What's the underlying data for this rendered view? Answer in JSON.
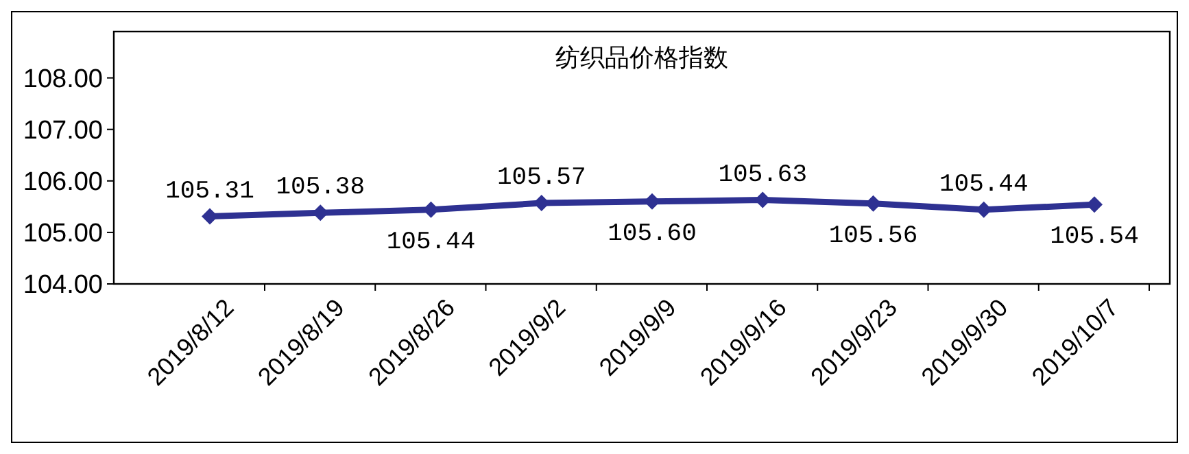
{
  "chart_data": {
    "type": "line",
    "title": "纺织品价格指数",
    "categories": [
      "2019/8/12",
      "2019/8/19",
      "2019/8/26",
      "2019/9/2",
      "2019/9/9",
      "2019/9/16",
      "2019/9/23",
      "2019/9/30",
      "2019/10/7"
    ],
    "series": [
      {
        "color": "#2e3192",
        "values": [
          105.31,
          105.38,
          105.44,
          105.57,
          105.6,
          105.63,
          105.56,
          105.44,
          105.54
        ]
      }
    ],
    "ylim": [
      104,
      108.9
    ],
    "value_labels": [
      [
        "105.31",
        "105.38",
        "105.44",
        "105.57",
        "105.60",
        "105.63",
        "105.56",
        "105.44",
        "105.54"
      ]
    ],
    "yticks": [
      {
        "value": 104,
        "label": "104.00"
      },
      {
        "value": 105,
        "label": "105.00"
      },
      {
        "value": 106,
        "label": "106.00"
      },
      {
        "value": 107,
        "label": "107.00"
      },
      {
        "value": 108,
        "label": "108.00"
      }
    ],
    "marker": "diamond",
    "line_style": "solid"
  }
}
